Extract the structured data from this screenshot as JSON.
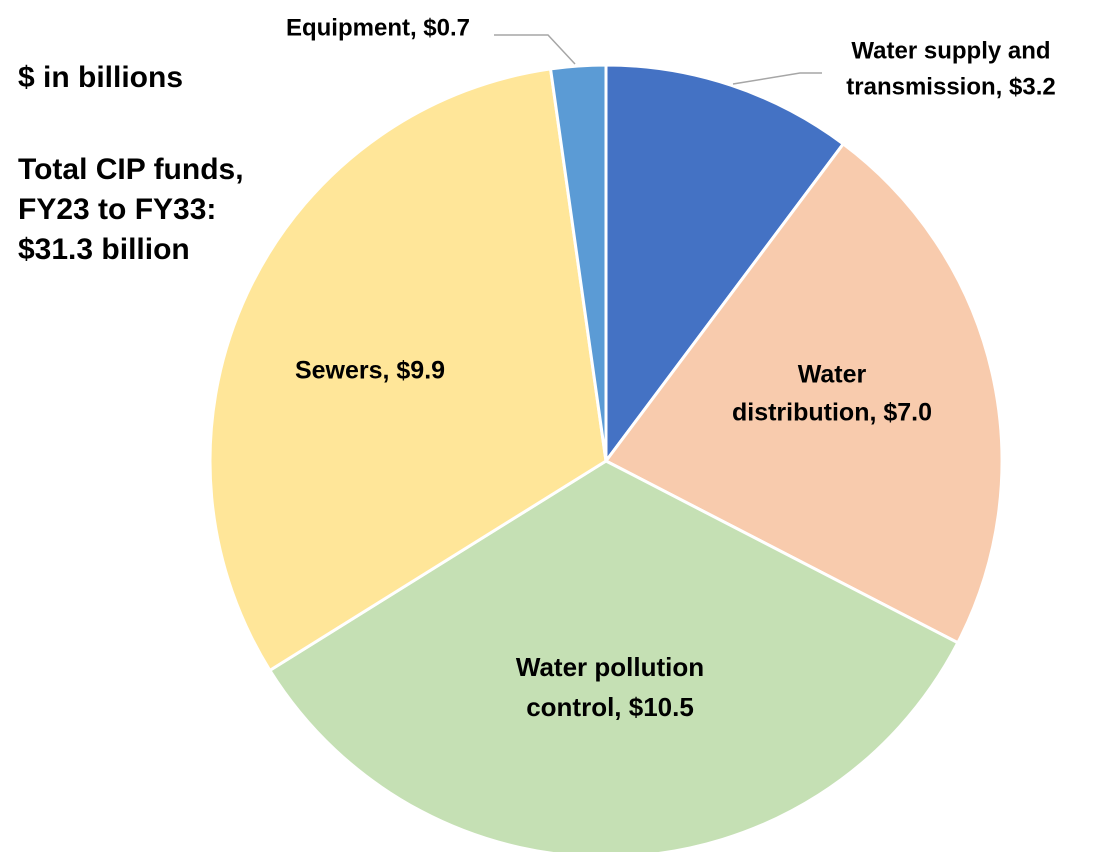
{
  "units_note": "$ in billions",
  "total_note": [
    "Total CIP funds,",
    "FY23 to FY33:",
    "$31.3 billion"
  ],
  "chart_data": {
    "type": "pie",
    "start": "12 o'clock",
    "direction": "clockwise",
    "slices": [
      {
        "label": [
          "Water supply and",
          "transmission, $3.2"
        ],
        "name": "Water supply and transmission",
        "value": 3.2,
        "color": "#4472C4"
      },
      {
        "label": [
          "Water",
          "distribution, $7.0"
        ],
        "name": "Water distribution",
        "value": 7.0,
        "color": "#F8CBAD"
      },
      {
        "label": [
          "Water pollution",
          "control, $10.5"
        ],
        "name": "Water pollution control",
        "value": 10.5,
        "color": "#C5E0B4"
      },
      {
        "label": [
          "Sewers, $9.9"
        ],
        "name": "Sewers",
        "value": 9.9,
        "color": "#FFE699"
      },
      {
        "label": [
          "Equipment, $0.7"
        ],
        "name": "Equipment",
        "value": 0.7,
        "color": "#5B9BD5"
      }
    ]
  }
}
